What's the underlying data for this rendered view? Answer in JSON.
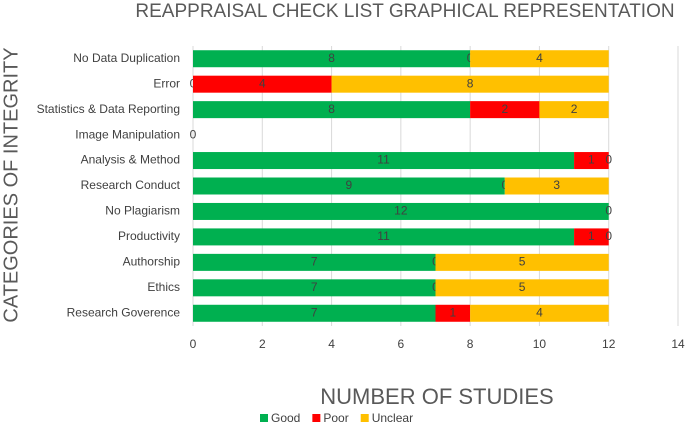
{
  "chart_data": {
    "type": "stacked-barh",
    "title": "REAPPRAISAL CHECK LIST GRAPHICAL REPRESENTATION",
    "x_label": "NUMBER OF STUDIES",
    "y_label": "CATEGORIES OF INTEGRITY",
    "categories": [
      "No Data Duplication",
      "Error",
      "Statistics & Data Reporting",
      "Image Manipulation",
      "Analysis & Method",
      "Research Conduct",
      "No Plagiarism",
      "Productivity",
      "Authorship",
      "Ethics",
      "Research Goverence"
    ],
    "series": [
      {
        "name": "Good",
        "color": "#00b050",
        "values": [
          8,
          0,
          8,
          0,
          11,
          9,
          12,
          11,
          7,
          7,
          7
        ]
      },
      {
        "name": "Poor",
        "color": "#ff0000",
        "values": [
          0,
          4,
          2,
          null,
          1,
          0,
          null,
          1,
          0,
          0,
          1
        ]
      },
      {
        "name": "Unclear",
        "color": "#ffc000",
        "values": [
          4,
          8,
          2,
          null,
          0,
          3,
          0,
          0,
          5,
          5,
          4
        ]
      }
    ],
    "xlim": [
      0,
      14
    ],
    "xticks": [
      0,
      2,
      4,
      6,
      8,
      10,
      12,
      14
    ],
    "grid": true,
    "legend": "bottom"
  }
}
